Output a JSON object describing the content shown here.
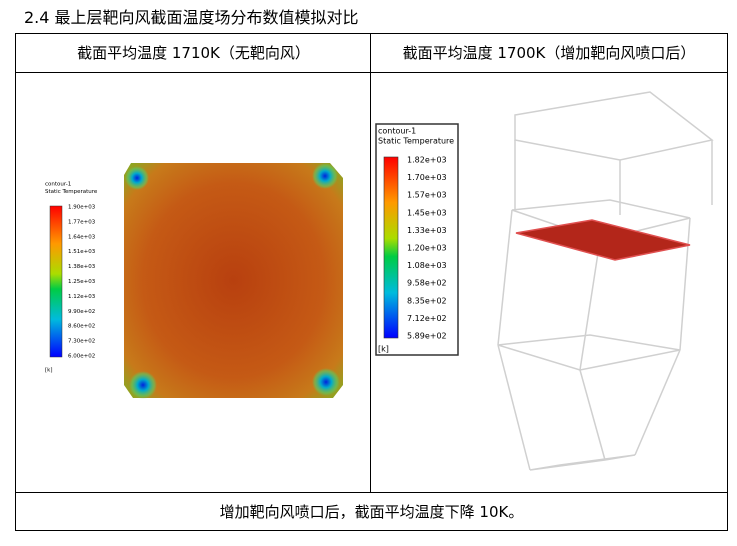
{
  "heading": "2.4 最上层靶向风截面温度场分布数值模拟对比",
  "table": {
    "headers": [
      "截面平均温度 1710K（无靶向风）",
      "截面平均温度 1700K（增加靶向风喷口后）"
    ],
    "left_legend": {
      "title": "contour-1",
      "variable": "Static Temperature",
      "labels": [
        "1.90e+03",
        "1.77e+03",
        "1.64e+03",
        "1.51e+03",
        "1.38e+03",
        "1.25e+03",
        "1.12e+03",
        "9.90e+02",
        "8.60e+02",
        "7.30e+02",
        "6.00e+02"
      ],
      "unit": "[k]"
    },
    "right_legend": {
      "title": "contour-1",
      "variable": "Static Temperature",
      "labels": [
        "1.82e+03",
        "1.70e+03",
        "1.57e+03",
        "1.45e+03",
        "1.33e+03",
        "1.20e+03",
        "1.08e+03",
        "9.58e+02",
        "8.35e+02",
        "7.12e+02",
        "5.89e+02"
      ],
      "unit": "[k]"
    },
    "footer": "增加靶向风喷口后，截面平均温度下降 10K。"
  }
}
